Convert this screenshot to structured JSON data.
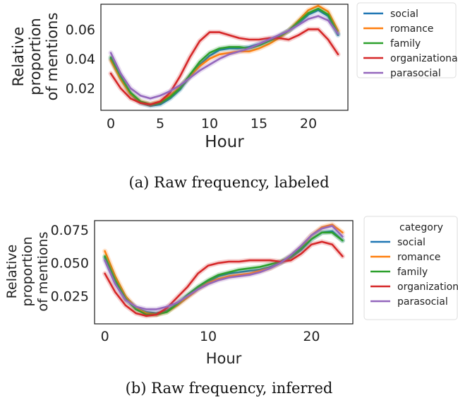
{
  "chart_data": [
    {
      "type": "line",
      "caption": "(a) Raw frequency, labeled",
      "xlabel": "Hour",
      "ylabel_lines": [
        "Relative",
        "proportion",
        "of mentions"
      ],
      "xlim": [
        -1,
        24
      ],
      "ylim": [
        0.005,
        0.077
      ],
      "xticks": [
        0,
        5,
        10,
        15,
        20
      ],
      "yticks": [
        0.02,
        0.04,
        0.06
      ],
      "ytick_labels": [
        "0.02",
        "0.04",
        "0.06"
      ],
      "legend_title": "",
      "legend_position": "outside-right-top",
      "series": [
        {
          "name": "social",
          "color": "#1f77b4",
          "x": [
            0,
            1,
            2,
            3,
            4,
            5,
            6,
            7,
            8,
            9,
            10,
            11,
            12,
            13,
            14,
            15,
            16,
            17,
            18,
            19,
            20,
            21,
            22,
            23
          ],
          "values": [
            0.04,
            0.027,
            0.016,
            0.01,
            0.008,
            0.009,
            0.013,
            0.019,
            0.028,
            0.036,
            0.042,
            0.046,
            0.047,
            0.047,
            0.048,
            0.05,
            0.052,
            0.055,
            0.059,
            0.064,
            0.07,
            0.073,
            0.069,
            0.056
          ]
        },
        {
          "name": "romance",
          "color": "#ff7f0e",
          "x": [
            0,
            1,
            2,
            3,
            4,
            5,
            6,
            7,
            8,
            9,
            10,
            11,
            12,
            13,
            14,
            15,
            16,
            17,
            18,
            19,
            20,
            21,
            22,
            23
          ],
          "values": [
            0.039,
            0.026,
            0.016,
            0.011,
            0.009,
            0.011,
            0.015,
            0.021,
            0.028,
            0.035,
            0.04,
            0.043,
            0.044,
            0.045,
            0.045,
            0.047,
            0.05,
            0.054,
            0.059,
            0.066,
            0.073,
            0.076,
            0.072,
            0.059
          ]
        },
        {
          "name": "family",
          "color": "#2ca02c",
          "x": [
            0,
            1,
            2,
            3,
            4,
            5,
            6,
            7,
            8,
            9,
            10,
            11,
            12,
            13,
            14,
            15,
            16,
            17,
            18,
            19,
            20,
            21,
            22,
            23
          ],
          "values": [
            0.041,
            0.028,
            0.017,
            0.011,
            0.009,
            0.01,
            0.014,
            0.02,
            0.029,
            0.038,
            0.044,
            0.047,
            0.048,
            0.048,
            0.047,
            0.049,
            0.052,
            0.055,
            0.059,
            0.065,
            0.071,
            0.074,
            0.07,
            0.057
          ]
        },
        {
          "name": "organizational",
          "color": "#d62728",
          "x": [
            0,
            1,
            2,
            3,
            4,
            5,
            6,
            7,
            8,
            9,
            10,
            11,
            12,
            13,
            14,
            15,
            16,
            17,
            18,
            19,
            20,
            21,
            22,
            23
          ],
          "values": [
            0.03,
            0.02,
            0.013,
            0.01,
            0.009,
            0.011,
            0.017,
            0.028,
            0.041,
            0.052,
            0.058,
            0.058,
            0.056,
            0.054,
            0.053,
            0.053,
            0.054,
            0.054,
            0.053,
            0.056,
            0.06,
            0.06,
            0.053,
            0.043
          ]
        },
        {
          "name": "parasocial",
          "color": "#9467bd",
          "x": [
            0,
            1,
            2,
            3,
            4,
            5,
            6,
            7,
            8,
            9,
            10,
            11,
            12,
            13,
            14,
            15,
            16,
            17,
            18,
            19,
            20,
            21,
            22,
            23
          ],
          "values": [
            0.044,
            0.03,
            0.02,
            0.015,
            0.013,
            0.015,
            0.018,
            0.022,
            0.027,
            0.032,
            0.036,
            0.04,
            0.043,
            0.045,
            0.047,
            0.05,
            0.053,
            0.056,
            0.059,
            0.063,
            0.067,
            0.069,
            0.066,
            0.057
          ]
        }
      ]
    },
    {
      "type": "line",
      "caption": "(b) Raw frequency, inferred",
      "xlabel": "Hour",
      "ylabel_lines": [
        "Relative",
        "proportion",
        "of mentions"
      ],
      "xlim": [
        -1,
        24
      ],
      "ylim": [
        0.004,
        0.082
      ],
      "xticks": [
        0,
        10,
        20
      ],
      "yticks": [
        0.025,
        0.05,
        0.075
      ],
      "ytick_labels": [
        "0.025",
        "0.050",
        "0.075"
      ],
      "legend_title": "category",
      "legend_position": "outside-right-top",
      "series": [
        {
          "name": "social",
          "color": "#1f77b4",
          "x": [
            0,
            1,
            2,
            3,
            4,
            5,
            6,
            7,
            8,
            9,
            10,
            11,
            12,
            13,
            14,
            15,
            16,
            17,
            18,
            19,
            20,
            21,
            22,
            23
          ],
          "values": [
            0.054,
            0.036,
            0.023,
            0.016,
            0.013,
            0.012,
            0.014,
            0.019,
            0.025,
            0.031,
            0.036,
            0.04,
            0.042,
            0.043,
            0.044,
            0.045,
            0.047,
            0.05,
            0.054,
            0.06,
            0.068,
            0.073,
            0.074,
            0.067
          ]
        },
        {
          "name": "romance",
          "color": "#ff7f0e",
          "x": [
            0,
            1,
            2,
            3,
            4,
            5,
            6,
            7,
            8,
            9,
            10,
            11,
            12,
            13,
            14,
            15,
            16,
            17,
            18,
            19,
            20,
            21,
            22,
            23
          ],
          "values": [
            0.059,
            0.04,
            0.025,
            0.016,
            0.012,
            0.011,
            0.013,
            0.018,
            0.024,
            0.03,
            0.035,
            0.038,
            0.04,
            0.041,
            0.042,
            0.044,
            0.046,
            0.05,
            0.055,
            0.062,
            0.071,
            0.077,
            0.079,
            0.073
          ]
        },
        {
          "name": "family",
          "color": "#2ca02c",
          "x": [
            0,
            1,
            2,
            3,
            4,
            5,
            6,
            7,
            8,
            9,
            10,
            11,
            12,
            13,
            14,
            15,
            16,
            17,
            18,
            19,
            20,
            21,
            22,
            23
          ],
          "values": [
            0.055,
            0.037,
            0.023,
            0.015,
            0.011,
            0.011,
            0.013,
            0.019,
            0.026,
            0.032,
            0.037,
            0.041,
            0.043,
            0.045,
            0.046,
            0.047,
            0.049,
            0.051,
            0.055,
            0.061,
            0.068,
            0.073,
            0.073,
            0.067
          ]
        },
        {
          "name": "organizational",
          "color": "#d62728",
          "x": [
            0,
            1,
            2,
            3,
            4,
            5,
            6,
            7,
            8,
            9,
            10,
            11,
            12,
            13,
            14,
            15,
            16,
            17,
            18,
            19,
            20,
            21,
            22,
            23
          ],
          "values": [
            0.042,
            0.028,
            0.018,
            0.012,
            0.01,
            0.011,
            0.016,
            0.024,
            0.032,
            0.042,
            0.048,
            0.05,
            0.051,
            0.051,
            0.052,
            0.052,
            0.052,
            0.051,
            0.052,
            0.057,
            0.064,
            0.066,
            0.064,
            0.055
          ]
        },
        {
          "name": "parasocial",
          "color": "#9467bd",
          "x": [
            0,
            1,
            2,
            3,
            4,
            5,
            6,
            7,
            8,
            9,
            10,
            11,
            12,
            13,
            14,
            15,
            16,
            17,
            18,
            19,
            20,
            21,
            22,
            23
          ],
          "values": [
            0.052,
            0.034,
            0.022,
            0.017,
            0.015,
            0.015,
            0.017,
            0.02,
            0.025,
            0.03,
            0.034,
            0.037,
            0.039,
            0.04,
            0.041,
            0.043,
            0.046,
            0.05,
            0.056,
            0.063,
            0.071,
            0.076,
            0.078,
            0.07
          ]
        }
      ]
    }
  ]
}
